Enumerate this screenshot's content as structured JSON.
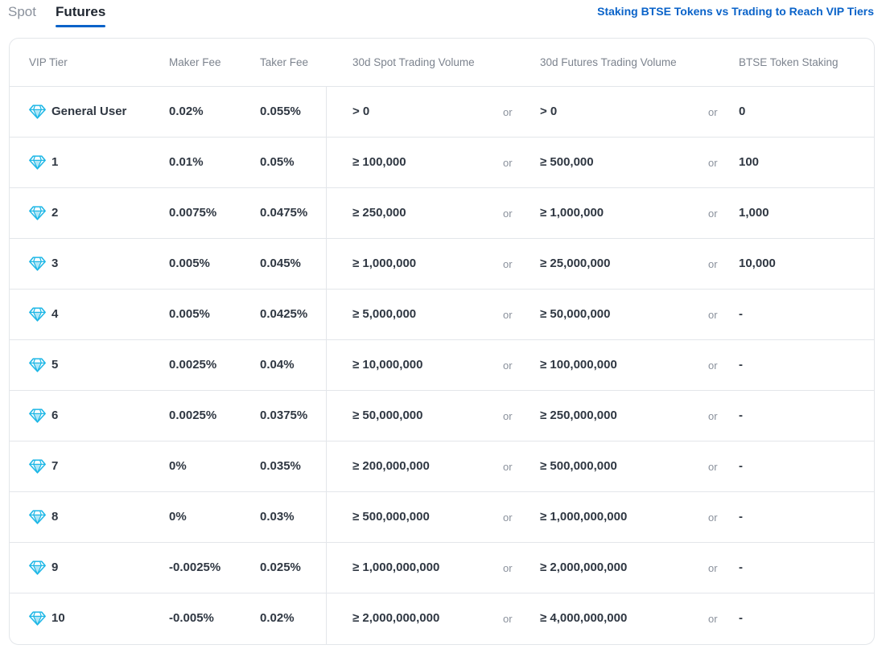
{
  "tabs": [
    {
      "label": "Spot",
      "active": false
    },
    {
      "label": "Futures",
      "active": true
    }
  ],
  "top_link": "Staking BTSE Tokens vs Trading to Reach VIP Tiers",
  "colors": {
    "accent": "#0a63c9",
    "gem": "#1eb7e6"
  },
  "table": {
    "headers": {
      "tier": "VIP Tier",
      "maker": "Maker Fee",
      "taker": "Taker Fee",
      "spot": "30d Spot Trading Volume",
      "futures": "30d Futures Trading Volume",
      "staking": "BTSE Token Staking"
    },
    "or_label": "or",
    "row_icon": "diamond-icon",
    "rows": [
      {
        "tier": "General User",
        "maker": "0.02%",
        "taker": "0.055%",
        "spot": "> 0",
        "futures": "> 0",
        "staking": "0"
      },
      {
        "tier": "1",
        "maker": "0.01%",
        "taker": "0.05%",
        "spot": "≥ 100,000",
        "futures": "≥ 500,000",
        "staking": "100"
      },
      {
        "tier": "2",
        "maker": "0.0075%",
        "taker": "0.0475%",
        "spot": "≥ 250,000",
        "futures": "≥ 1,000,000",
        "staking": "1,000"
      },
      {
        "tier": "3",
        "maker": "0.005%",
        "taker": "0.045%",
        "spot": "≥ 1,000,000",
        "futures": "≥ 25,000,000",
        "staking": "10,000"
      },
      {
        "tier": "4",
        "maker": "0.005%",
        "taker": "0.0425%",
        "spot": "≥ 5,000,000",
        "futures": "≥ 50,000,000",
        "staking": "-"
      },
      {
        "tier": "5",
        "maker": "0.0025%",
        "taker": "0.04%",
        "spot": "≥ 10,000,000",
        "futures": "≥ 100,000,000",
        "staking": "-"
      },
      {
        "tier": "6",
        "maker": "0.0025%",
        "taker": "0.0375%",
        "spot": "≥ 50,000,000",
        "futures": "≥ 250,000,000",
        "staking": "-"
      },
      {
        "tier": "7",
        "maker": "0%",
        "taker": "0.035%",
        "spot": "≥ 200,000,000",
        "futures": "≥ 500,000,000",
        "staking": "-"
      },
      {
        "tier": "8",
        "maker": "0%",
        "taker": "0.03%",
        "spot": "≥ 500,000,000",
        "futures": "≥ 1,000,000,000",
        "staking": "-"
      },
      {
        "tier": "9",
        "maker": "-0.0025%",
        "taker": "0.025%",
        "spot": "≥ 1,000,000,000",
        "futures": "≥ 2,000,000,000",
        "staking": "-"
      },
      {
        "tier": "10",
        "maker": "-0.005%",
        "taker": "0.02%",
        "spot": "≥ 2,000,000,000",
        "futures": "≥ 4,000,000,000",
        "staking": "-"
      }
    ]
  }
}
